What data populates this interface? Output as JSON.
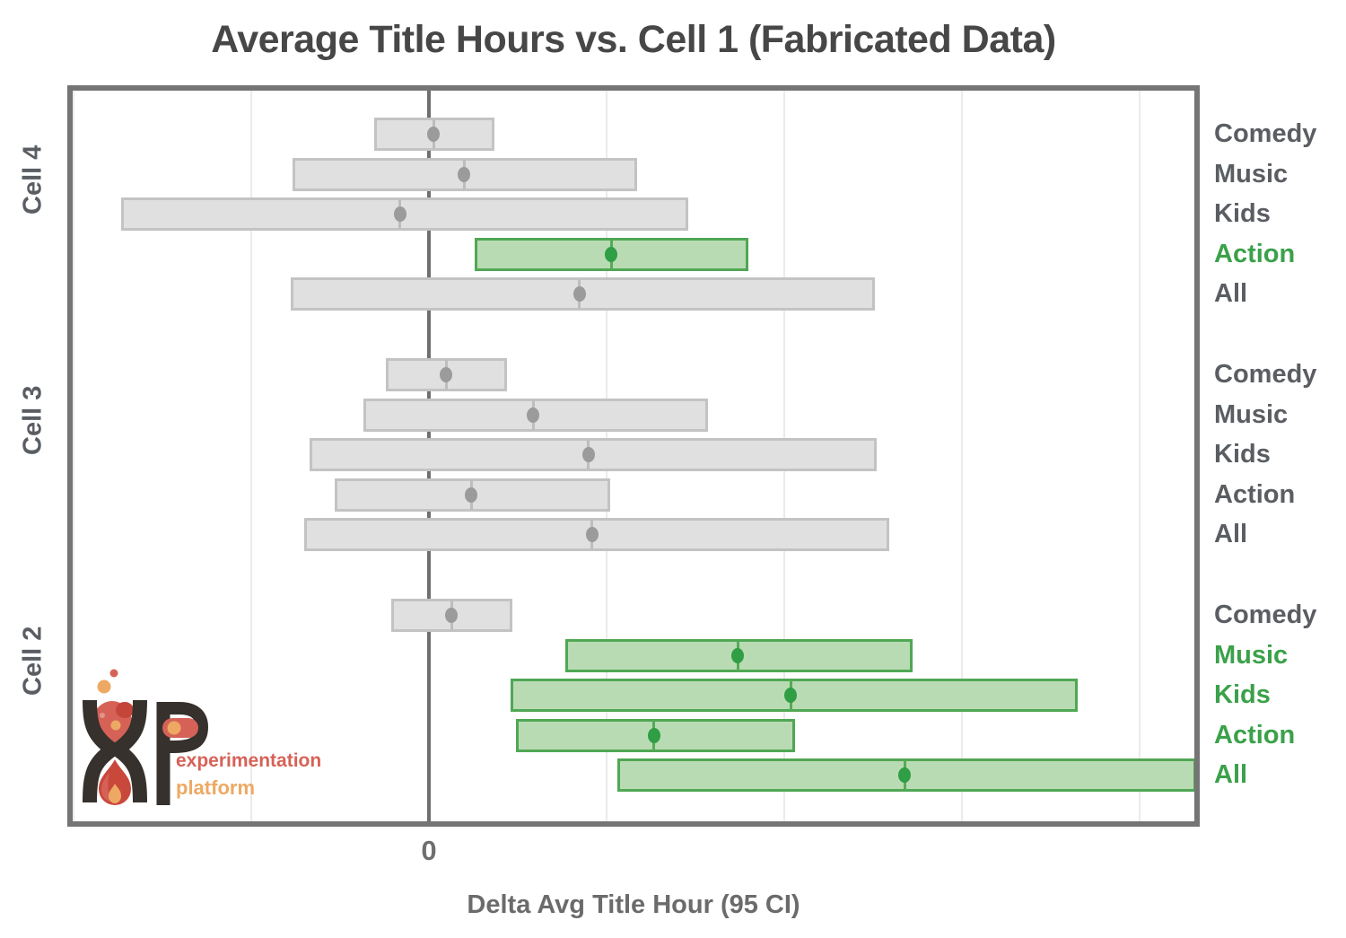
{
  "title": "Average Title Hours vs. Cell 1 (Fabricated Data)",
  "x_axis": {
    "label": "Delta Avg Title Hour (95 CI)",
    "tick_label": "0"
  },
  "logo": {
    "line1": "experimentation",
    "line2": "platform"
  },
  "colors": {
    "title_text": "#474747",
    "label_gray": "#5a5e62",
    "label_green": "#3ba14a",
    "bar_gray_fill": "#e0e0e0",
    "bar_gray_border": "#c3c3c3",
    "bar_gray_dot": "#9b9b9b",
    "bar_green_fill": "#b9dbb4",
    "bar_green_border": "#50a754",
    "bar_green_dot": "#2f9e44",
    "gridline": "#ebebeb",
    "zero_line": "#6f6f6f",
    "frame": "#757575",
    "axis_text": "#6f6f6f",
    "logo_dark": "#36312d",
    "logo_red": "#d66257",
    "logo_orange": "#eda963",
    "logo_flame": "#c9483c"
  },
  "chart_data": {
    "type": "bar",
    "subtype": "horizontal-confidence-intervals",
    "title": "Average Title Hours vs. Cell 1 (Fabricated Data)",
    "xlabel": "Delta Avg Title Hour (95 CI)",
    "ylabel": "",
    "xlim": [
      -2.04,
      4.34
    ],
    "x_ticks": [
      {
        "value": 0,
        "label": "0"
      }
    ],
    "gridline_values": [
      -2,
      -1,
      0,
      1,
      2,
      3,
      4
    ],
    "grid": "vertical-only",
    "legend": "none",
    "note": "Green bars/labels mark intervals excluding 0 (significant); units inferred from unlabeled gridlines (1 unit per gridline).",
    "groups": [
      {
        "name": "Cell 4",
        "bars": [
          {
            "category": "Comedy",
            "ci_low": -0.31,
            "ci_high": 0.37,
            "estimate": 0.02,
            "significant": false
          },
          {
            "category": "Music",
            "ci_low": -0.77,
            "ci_high": 1.17,
            "estimate": 0.19,
            "significant": false
          },
          {
            "category": "Kids",
            "ci_low": -1.73,
            "ci_high": 1.46,
            "estimate": -0.17,
            "significant": false
          },
          {
            "category": "Action",
            "ci_low": 0.26,
            "ci_high": 1.8,
            "estimate": 1.02,
            "significant": true
          },
          {
            "category": "All",
            "ci_low": -0.78,
            "ci_high": 2.51,
            "estimate": 0.84,
            "significant": false
          }
        ]
      },
      {
        "name": "Cell 3",
        "bars": [
          {
            "category": "Comedy",
            "ci_low": -0.24,
            "ci_high": 0.44,
            "estimate": 0.09,
            "significant": false
          },
          {
            "category": "Music",
            "ci_low": -0.37,
            "ci_high": 1.57,
            "estimate": 0.58,
            "significant": false
          },
          {
            "category": "Kids",
            "ci_low": -0.67,
            "ci_high": 2.52,
            "estimate": 0.89,
            "significant": false
          },
          {
            "category": "Action",
            "ci_low": -0.53,
            "ci_high": 1.02,
            "estimate": 0.23,
            "significant": false
          },
          {
            "category": "All",
            "ci_low": -0.7,
            "ci_high": 2.59,
            "estimate": 0.91,
            "significant": false
          }
        ]
      },
      {
        "name": "Cell 2",
        "bars": [
          {
            "category": "Comedy",
            "ci_low": -0.21,
            "ci_high": 0.47,
            "estimate": 0.12,
            "significant": false
          },
          {
            "category": "Music",
            "ci_low": 0.77,
            "ci_high": 2.72,
            "estimate": 1.73,
            "significant": true
          },
          {
            "category": "Kids",
            "ci_low": 0.46,
            "ci_high": 3.65,
            "estimate": 2.03,
            "significant": true
          },
          {
            "category": "Action",
            "ci_low": 0.49,
            "ci_high": 2.06,
            "estimate": 1.26,
            "significant": true
          },
          {
            "category": "All",
            "ci_low": 1.06,
            "ci_high": 4.32,
            "estimate": 2.67,
            "significant": true
          }
        ]
      }
    ]
  }
}
